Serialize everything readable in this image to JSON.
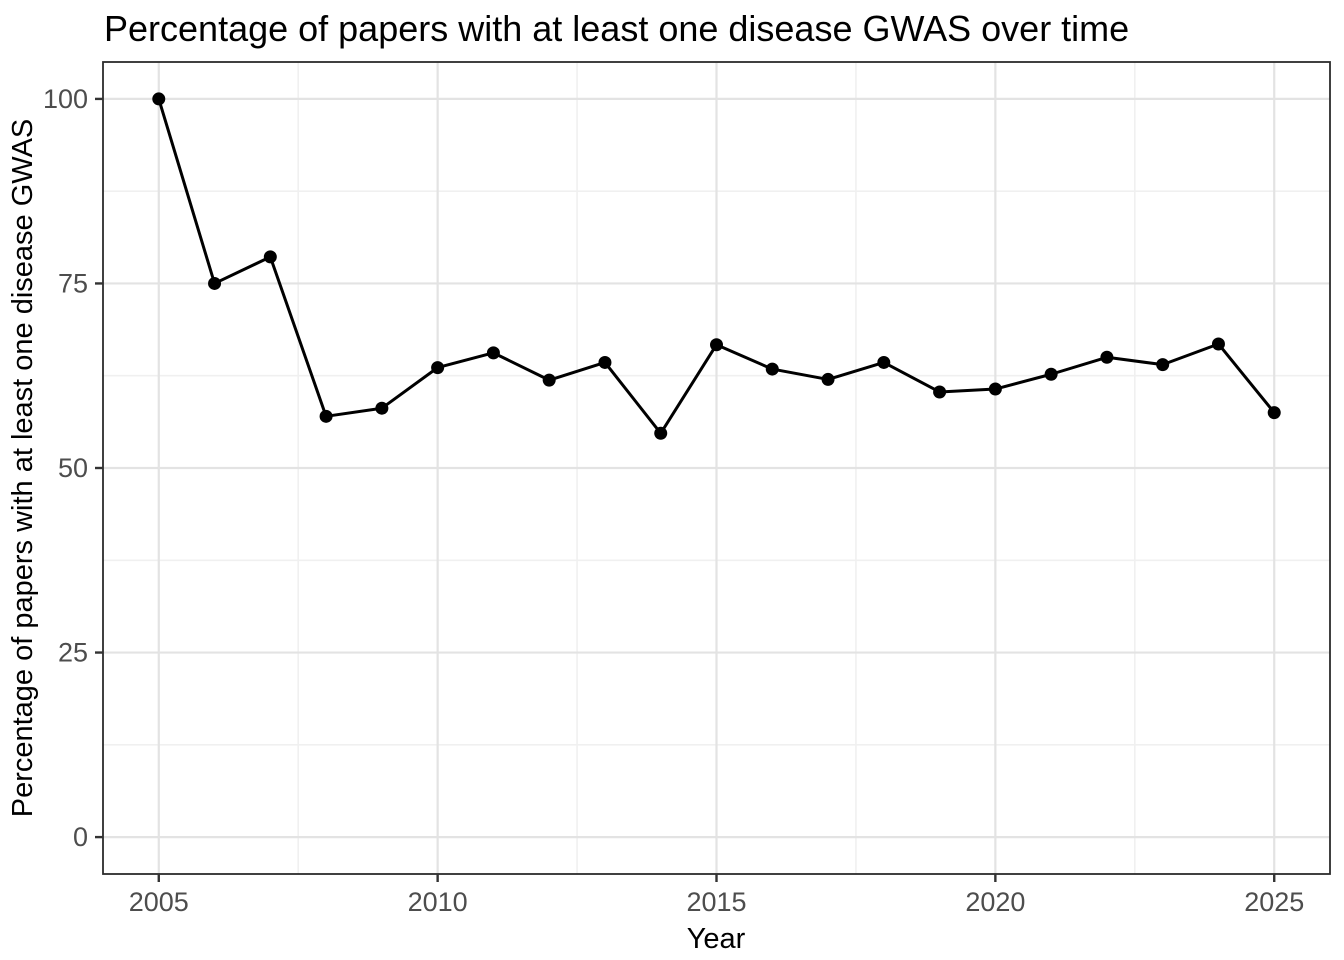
{
  "chart_data": {
    "type": "line",
    "title": "Percentage of papers with at least one disease GWAS over time",
    "xlabel": "Year",
    "ylabel": "Percentage of papers with at least one disease GWAS",
    "x": [
      2005,
      2006,
      2007,
      2008,
      2009,
      2010,
      2011,
      2012,
      2013,
      2014,
      2015,
      2016,
      2017,
      2018,
      2019,
      2020,
      2021,
      2022,
      2023,
      2024,
      2025
    ],
    "values": [
      100,
      75,
      78.6,
      57.0,
      58.1,
      63.6,
      65.6,
      61.9,
      64.3,
      54.7,
      66.7,
      63.4,
      62.0,
      64.3,
      60.3,
      60.7,
      62.7,
      65.0,
      64.0,
      66.8,
      57.5
    ],
    "series_name": "Percentage of papers with at least one disease GWAS",
    "x_ticks": [
      2005,
      2010,
      2015,
      2020,
      2025
    ],
    "y_ticks": [
      0,
      25,
      50,
      75,
      100
    ],
    "x_minor_ticks": [
      2007.5,
      2012.5,
      2017.5,
      2022.5
    ],
    "y_minor_ticks": [
      12.5,
      37.5,
      62.5,
      87.5
    ],
    "xlim": [
      2004,
      2026
    ],
    "ylim": [
      -5,
      105
    ],
    "grid": "on",
    "legend": "none",
    "colors": {
      "line": "#000000",
      "point": "#000000",
      "grid_major": "#e3e3e3",
      "grid_minor": "#f0f0f0",
      "panel_border": "#2b2b2b",
      "tick_mark": "#333333",
      "tick_label": "#4d4d4d",
      "title": "#000000",
      "background": "#ffffff"
    },
    "marker": "filled-circle",
    "marker_radius": 6.5,
    "line_width": 3
  }
}
